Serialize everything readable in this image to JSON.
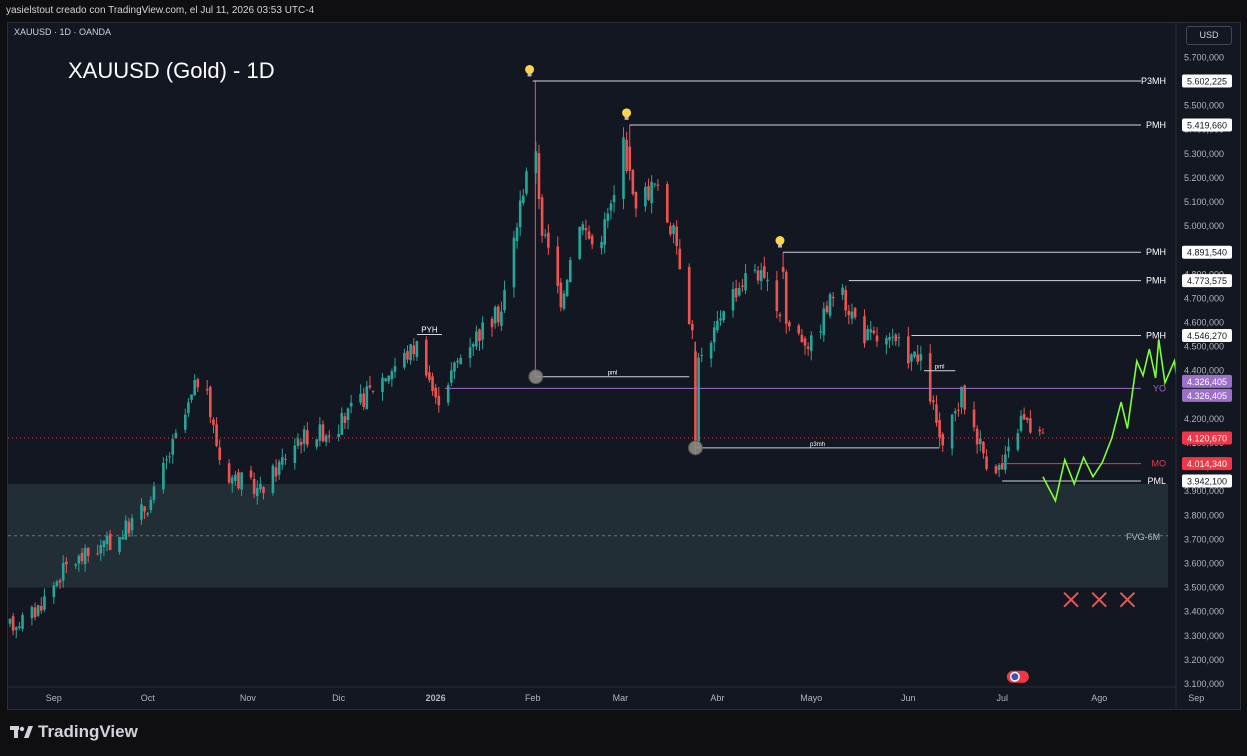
{
  "header": {
    "credit": "yasielstout creado con TradingView.com, el Jul 11, 2026 03:53 UTC-4"
  },
  "chart_header": {
    "symbol": "XAUUSD · 1D · OANDA",
    "title": "XAUUSD (Gold) - 1D",
    "currency_button": "USD"
  },
  "footer": {
    "brand": "TradingView"
  },
  "colors": {
    "bull": "#26a69a",
    "bear": "#ef5350",
    "projection": "#7fff3a",
    "yo": "#9c6fc9",
    "last": "#f23645"
  },
  "chart_data": {
    "type": "candlestick",
    "title": "XAUUSD (Gold) - 1D",
    "ylim": [
      3080,
      5800
    ],
    "y_ticks": [
      {
        "value": 5700,
        "label": "5.700,000"
      },
      {
        "value": 5600,
        "label": "5.600,000"
      },
      {
        "value": 5500,
        "label": "5.500,000"
      },
      {
        "value": 5400,
        "label": "5.400,000"
      },
      {
        "value": 5300,
        "label": "5.300,000"
      },
      {
        "value": 5200,
        "label": "5.200,000"
      },
      {
        "value": 5100,
        "label": "5.100,000"
      },
      {
        "value": 5000,
        "label": "5.000,000"
      },
      {
        "value": 4900,
        "label": "4.900,000"
      },
      {
        "value": 4800,
        "label": "4.800,000"
      },
      {
        "value": 4700,
        "label": "4.700,000"
      },
      {
        "value": 4600,
        "label": "4.600,000"
      },
      {
        "value": 4500,
        "label": "4.500,000"
      },
      {
        "value": 4400,
        "label": "4.400,000"
      },
      {
        "value": 4300,
        "label": "4.300,000"
      },
      {
        "value": 4200,
        "label": "4.200,000"
      },
      {
        "value": 4100,
        "label": "4.100,000"
      },
      {
        "value": 4000,
        "label": "4.000,000"
      },
      {
        "value": 3900,
        "label": "3.900,000"
      },
      {
        "value": 3800,
        "label": "3.800,000"
      },
      {
        "value": 3700,
        "label": "3.700,000"
      },
      {
        "value": 3600,
        "label": "3.600,000"
      },
      {
        "value": 3500,
        "label": "3.500,000"
      },
      {
        "value": 3400,
        "label": "3.400,000"
      },
      {
        "value": 3300,
        "label": "3.300,000"
      },
      {
        "value": 3200,
        "label": "3.200,000"
      },
      {
        "value": 3100,
        "label": "3.100,000"
      }
    ],
    "x_ticks": [
      {
        "day": 14,
        "label": "Sep",
        "bold": false
      },
      {
        "day": 44,
        "label": "Oct",
        "bold": false
      },
      {
        "day": 76,
        "label": "Nov",
        "bold": false
      },
      {
        "day": 105,
        "label": "Dic",
        "bold": false
      },
      {
        "day": 136,
        "label": "2026",
        "bold": true
      },
      {
        "day": 167,
        "label": "Feb",
        "bold": false
      },
      {
        "day": 195,
        "label": "Mar",
        "bold": false
      },
      {
        "day": 226,
        "label": "Abr",
        "bold": false
      },
      {
        "day": 256,
        "label": "Mayo",
        "bold": false
      },
      {
        "day": 287,
        "label": "Jun",
        "bold": false
      },
      {
        "day": 317,
        "label": "Jul",
        "bold": false
      },
      {
        "day": 348,
        "label": "Ago",
        "bold": false
      },
      {
        "day": 379,
        "label": "Sep",
        "bold": false
      }
    ],
    "path": [
      [
        0,
        3340
      ],
      [
        8,
        3400
      ],
      [
        18,
        3590
      ],
      [
        34,
        3700
      ],
      [
        45,
        3860
      ],
      [
        57,
        4250
      ],
      [
        61,
        4400
      ],
      [
        68,
        3980
      ],
      [
        80,
        3900
      ],
      [
        92,
        4120
      ],
      [
        104,
        4160
      ],
      [
        118,
        4360
      ],
      [
        131,
        4520
      ],
      [
        136,
        4270
      ],
      [
        146,
        4510
      ],
      [
        157,
        4650
      ],
      [
        164,
        5160
      ],
      [
        167,
        5420
      ],
      [
        170,
        4990
      ],
      [
        176,
        4700
      ],
      [
        182,
        5030
      ],
      [
        187,
        4900
      ],
      [
        194,
        5150
      ],
      [
        196,
        5360
      ],
      [
        199,
        5100
      ],
      [
        206,
        5170
      ],
      [
        213,
        4930
      ],
      [
        218,
        4560
      ],
      [
        222,
        4410
      ],
      [
        228,
        4680
      ],
      [
        238,
        4830
      ],
      [
        248,
        4600
      ],
      [
        256,
        4510
      ],
      [
        264,
        4750
      ],
      [
        273,
        4550
      ],
      [
        284,
        4500
      ],
      [
        292,
        4420
      ],
      [
        298,
        4060
      ],
      [
        304,
        4300
      ],
      [
        312,
        4030
      ],
      [
        317,
        3990
      ],
      [
        323,
        4200
      ],
      [
        330,
        4120
      ]
    ],
    "key_candles": [
      {
        "day": 167,
        "open": 5400,
        "high": 5602,
        "low": 4430,
        "close": 4520
      },
      {
        "day": 198,
        "open": 5330,
        "high": 5420,
        "low": 5190,
        "close": 5230
      },
      {
        "day": 219,
        "open": 4480,
        "high": 4520,
        "low": 4050,
        "close": 4110
      },
      {
        "day": 247,
        "open": 4830,
        "high": 4892,
        "low": 4780,
        "close": 4810
      }
    ],
    "levels": [
      {
        "name": "P3MH",
        "value": 5602.225,
        "label": "5.602,225",
        "from_day": 167,
        "color": "#d1d4dc"
      },
      {
        "name": "PMH",
        "value": 5419.66,
        "label": "5.419,660",
        "from_day": 198,
        "color": "#d1d4dc"
      },
      {
        "name": "PMH",
        "value": 4891.54,
        "label": "4.891,540",
        "from_day": 247,
        "color": "#d1d4dc"
      },
      {
        "name": "PMH",
        "value": 4773.575,
        "label": "4.773,575",
        "from_day": 268,
        "color": "#d1d4dc"
      },
      {
        "name": "PMH",
        "value": 4546.27,
        "label": "4.546,270",
        "from_day": 288,
        "color": "#d1d4dc"
      },
      {
        "name": "YO",
        "value": 4326.405,
        "label": "4.326,405",
        "from_day": 139,
        "color": "#9c6fc9"
      },
      {
        "name": "MO",
        "value": 4014.34,
        "label": "4.014,340",
        "from_day": 317,
        "color": "#f23645"
      },
      {
        "name": "PML",
        "value": 3942.1,
        "label": "3.942,100",
        "from_day": 317,
        "color": "#d1d4dc"
      }
    ],
    "yo_extra_label": "4.326,405",
    "last_price": {
      "value": 4120.67,
      "label": "4.120,670"
    },
    "short_lines": [
      {
        "name": "PYH",
        "value": 4550,
        "from_day": 130,
        "to_day": 138
      },
      {
        "name": "pml",
        "value": 4375,
        "from_day": 168,
        "to_day": 217
      },
      {
        "name": "p3mh",
        "value": 4080,
        "from_day": 219,
        "to_day": 297
      },
      {
        "name": "pml",
        "value": 4400,
        "from_day": 292,
        "to_day": 302
      }
    ],
    "circles": [
      {
        "day": 168,
        "value": 4375
      },
      {
        "day": 219,
        "value": 4080
      }
    ],
    "bulbs": [
      {
        "day": 166,
        "value": 5650
      },
      {
        "day": 197,
        "value": 5470
      },
      {
        "day": 246,
        "value": 4940
      }
    ],
    "fvg": {
      "name": "FVG-6M",
      "top": 3930,
      "bottom": 3500,
      "mid": 3715,
      "to_day": 370
    },
    "projection": [
      [
        330,
        3960
      ],
      [
        334,
        3860
      ],
      [
        337,
        4030
      ],
      [
        340,
        3930
      ],
      [
        343,
        4040
      ],
      [
        346,
        3960
      ],
      [
        349,
        4020
      ],
      [
        352,
        4120
      ],
      [
        355,
        4270
      ],
      [
        357,
        4160
      ],
      [
        360,
        4440
      ],
      [
        362,
        4380
      ],
      [
        364,
        4490
      ],
      [
        366,
        4370
      ],
      [
        367,
        4530
      ],
      [
        369,
        4350
      ],
      [
        372,
        4440
      ],
      [
        374,
        4260
      ],
      [
        377,
        4570
      ],
      [
        379,
        4490
      ],
      [
        381,
        4640
      ],
      [
        383,
        4600
      ],
      [
        386,
        4770
      ]
    ],
    "crosses": [
      {
        "day": 339,
        "value": 3450
      },
      {
        "day": 348,
        "value": 3450
      },
      {
        "day": 357,
        "value": 3450
      }
    ],
    "flag_marker": {
      "day": 322,
      "value": 3130
    }
  }
}
